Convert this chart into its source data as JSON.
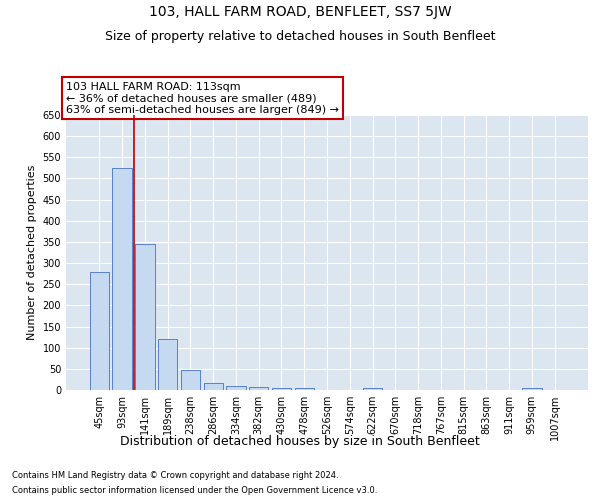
{
  "title": "103, HALL FARM ROAD, BENFLEET, SS7 5JW",
  "subtitle": "Size of property relative to detached houses in South Benfleet",
  "xlabel": "Distribution of detached houses by size in South Benfleet",
  "ylabel": "Number of detached properties",
  "footer_line1": "Contains HM Land Registry data © Crown copyright and database right 2024.",
  "footer_line2": "Contains public sector information licensed under the Open Government Licence v3.0.",
  "categories": [
    "45sqm",
    "93sqm",
    "141sqm",
    "189sqm",
    "238sqm",
    "286sqm",
    "334sqm",
    "382sqm",
    "430sqm",
    "478sqm",
    "526sqm",
    "574sqm",
    "622sqm",
    "670sqm",
    "718sqm",
    "767sqm",
    "815sqm",
    "863sqm",
    "911sqm",
    "959sqm",
    "1007sqm"
  ],
  "values": [
    280,
    525,
    345,
    120,
    48,
    16,
    10,
    8,
    5,
    4,
    0,
    0,
    5,
    0,
    0,
    0,
    0,
    0,
    0,
    5,
    0
  ],
  "bar_color": "#c5d9f1",
  "bar_edge_color": "#4472c4",
  "vline_x": 1.5,
  "vline_color": "#c00000",
  "annotation_text": "103 HALL FARM ROAD: 113sqm\n← 36% of detached houses are smaller (489)\n63% of semi-detached houses are larger (849) →",
  "annotation_box_color": "white",
  "annotation_box_edge_color": "#c00000",
  "ylim": [
    0,
    650
  ],
  "yticks": [
    0,
    50,
    100,
    150,
    200,
    250,
    300,
    350,
    400,
    450,
    500,
    550,
    600,
    650
  ],
  "background_color": "#dce6f1",
  "grid_color": "white",
  "title_fontsize": 10,
  "subtitle_fontsize": 9,
  "ylabel_fontsize": 8,
  "xlabel_fontsize": 9,
  "tick_fontsize": 7,
  "annotation_fontsize": 8,
  "footer_fontsize": 6
}
